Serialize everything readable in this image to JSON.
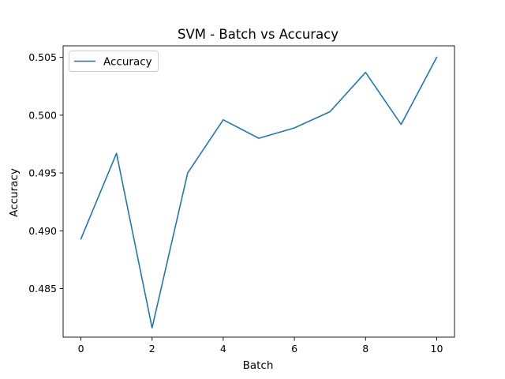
{
  "chart_data": {
    "type": "line",
    "title": "SVM - Batch vs Accuracy",
    "xlabel": "Batch",
    "ylabel": "Accuracy",
    "xlim": [
      -0.5,
      10.5
    ],
    "ylim": [
      0.4808,
      0.506
    ],
    "xticks": [
      0,
      2,
      4,
      6,
      8,
      10
    ],
    "yticks": [
      0.485,
      0.49,
      0.495,
      0.5,
      0.505
    ],
    "ytick_labels": [
      "0.485",
      "0.490",
      "0.495",
      "0.500",
      "0.505"
    ],
    "grid": false,
    "legend_position": "top-left",
    "series": [
      {
        "name": "Accuracy",
        "color": "#1f77b4",
        "x": [
          0,
          1,
          2,
          3,
          4,
          5,
          6,
          7,
          8,
          9,
          10
        ],
        "y": [
          0.4893,
          0.4967,
          0.4816,
          0.495,
          0.4996,
          0.498,
          0.4989,
          0.5003,
          0.5037,
          0.4992,
          0.505
        ]
      }
    ]
  }
}
